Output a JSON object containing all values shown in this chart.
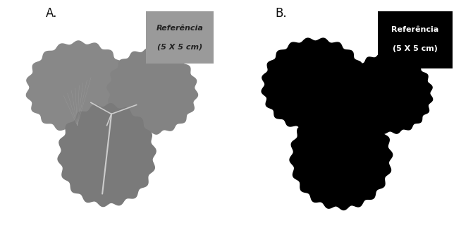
{
  "background_color": "#ffffff",
  "panel_A_label": "A.",
  "panel_B_label": "B.",
  "label_fontsize": 12,
  "label_color": "#111111",
  "ref_box_A_color": "#9a9a9a",
  "ref_box_B_color": "#000000",
  "ref_text_A_color": "#222222",
  "ref_text_B_color": "#ffffff",
  "ref_line1": "Referência",
  "ref_line2": "(5 X 5 cm)",
  "ref_text_fontsize": 8,
  "leaf_gray": "#888888",
  "leaf_black": "#000000",
  "fig_width": 6.71,
  "fig_height": 3.23
}
